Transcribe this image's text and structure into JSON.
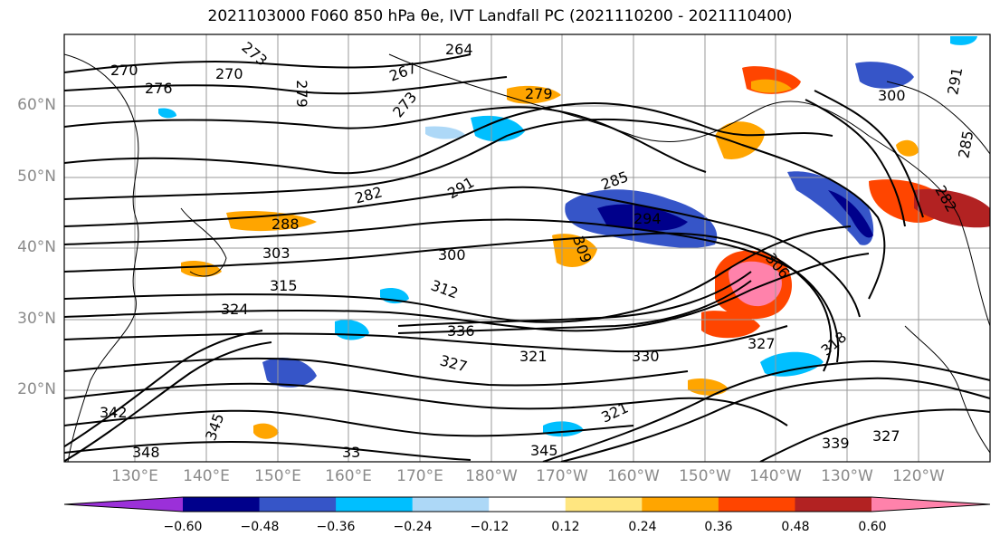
{
  "title": "2021103000 F060 850 hPa θe, IVT Landfall PC (2021110200 - 2021110400)",
  "lat_labels": [
    "60°N",
    "50°N",
    "40°N",
    "30°N",
    "20°N"
  ],
  "lon_labels": [
    "130°E",
    "140°E",
    "150°E",
    "160°E",
    "170°E",
    "180°W",
    "170°W",
    "160°W",
    "150°W",
    "140°W",
    "130°W",
    "120°W"
  ],
  "contour_labels": [
    "270",
    "276",
    "270",
    "273",
    "264",
    "267",
    "279",
    "273",
    "279",
    "285",
    "282",
    "291",
    "294",
    "288",
    "300",
    "303",
    "306",
    "309",
    "315",
    "312",
    "324",
    "327",
    "321",
    "336",
    "330",
    "327",
    "321",
    "318",
    "342",
    "345",
    "345",
    "348",
    "33",
    "339",
    "327",
    "291",
    "285",
    "300",
    "282"
  ],
  "colorbar": {
    "ticks": [
      "−0.60",
      "−0.48",
      "−0.36",
      "−0.24",
      "−0.12",
      "0.12",
      "0.24",
      "0.36",
      "0.48",
      "0.60"
    ],
    "colors": [
      "#9b30d9",
      "#00008b",
      "#3655c8",
      "#00bfff",
      "#add8f7",
      "#ffffff",
      "#ffe680",
      "#ffa500",
      "#ff4500",
      "#b22222",
      "#ff82ab"
    ]
  },
  "map_style": {
    "land_fill": "none",
    "contour_color": "#000000",
    "grid_color": "#999999"
  }
}
